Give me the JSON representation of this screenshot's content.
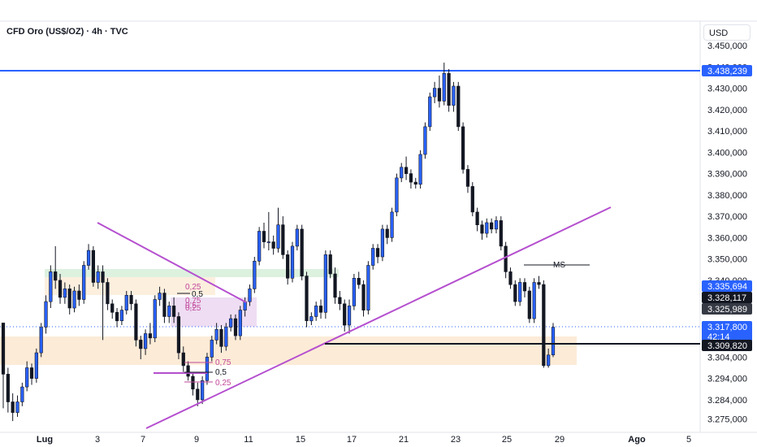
{
  "header": {
    "symbol_title": "CFD Oro (US$/OZ) · 4h · TVC",
    "currency": "USD"
  },
  "colors": {
    "up": "#2962ff",
    "down": "#131722",
    "trendline": "#b54fcf",
    "resistance": "#2962ff",
    "demand_zone": "#fbe8d0",
    "supply_zone": "#d9f0dc",
    "fvg_zone": "#ecd9f2",
    "fib_text": "#c2489b"
  },
  "chart_data": {
    "type": "candlestick",
    "price_axis": {
      "ticks": [
        "3.450,000",
        "3.440,000",
        "3.430,000",
        "3.420,000",
        "3.410,000",
        "3.400,000",
        "3.390,000",
        "3.380,000",
        "3.370,000",
        "3.360,000",
        "3.350,000",
        "3.340,000",
        "3.330,000",
        "3.304,000",
        "3.294,000",
        "3.284,000",
        "3.275,000"
      ],
      "tick_values": [
        3450,
        3440,
        3430,
        3420,
        3410,
        3400,
        3390,
        3380,
        3370,
        3360,
        3350,
        3340,
        3330,
        3304,
        3294,
        3284,
        3275
      ]
    },
    "time_axis": {
      "labels": [
        "Lug",
        "3",
        "7",
        "9",
        "11",
        "15",
        "17",
        "21",
        "23",
        "25",
        "29",
        "Ago",
        "5"
      ],
      "bold": [
        "Lug",
        "Ago"
      ]
    },
    "price_tags": [
      {
        "value": 3438.239,
        "label": "3.438,239",
        "style": "blue"
      },
      {
        "value": 3335.694,
        "label": "3.335,694",
        "style": "blue"
      },
      {
        "value": 3328.117,
        "label": "3.328,117",
        "style": "black"
      },
      {
        "value": 3325.989,
        "label": "3.325,989",
        "style": "grey"
      },
      {
        "value": 3317.8,
        "label": "3.317,800",
        "sublabel": "42:14",
        "style": "blue"
      },
      {
        "value": 3309.82,
        "label": "3.309,820",
        "style": "black"
      }
    ],
    "annotations": {
      "ms_label": "MS",
      "fib_upper": [
        "0,25",
        "0,5",
        "0,75",
        "0,5",
        "0,25"
      ],
      "fib_lower": [
        "0,75",
        "0,5",
        "0,25"
      ]
    },
    "candles": [
      [
        3320,
        3296,
        3300,
        3280
      ],
      [
        3296,
        3283,
        3299,
        3278
      ],
      [
        3283,
        3278,
        3287,
        3274
      ],
      [
        3278,
        3283,
        3286,
        3276
      ],
      [
        3283,
        3290,
        3292,
        3281
      ],
      [
        3290,
        3299,
        3302,
        3288
      ],
      [
        3299,
        3294,
        3301,
        3291
      ],
      [
        3294,
        3306,
        3308,
        3292
      ],
      [
        3306,
        3318,
        3320,
        3304
      ],
      [
        3318,
        3330,
        3333,
        3315
      ],
      [
        3330,
        3344,
        3347,
        3327
      ],
      [
        3344,
        3340,
        3356,
        3336
      ],
      [
        3340,
        3332,
        3343,
        3329
      ],
      [
        3332,
        3336,
        3339,
        3329
      ],
      [
        3336,
        3327,
        3338,
        3324
      ],
      [
        3327,
        3335,
        3337,
        3325
      ],
      [
        3335,
        3331,
        3338,
        3328
      ],
      [
        3331,
        3347,
        3349,
        3329
      ],
      [
        3347,
        3354,
        3357,
        3345
      ],
      [
        3354,
        3339,
        3356,
        3337
      ],
      [
        3339,
        3344,
        3347,
        3336
      ],
      [
        3344,
        3339,
        3347,
        3312
      ],
      [
        3339,
        3329,
        3341,
        3326
      ],
      [
        3329,
        3325,
        3331,
        3322
      ],
      [
        3325,
        3321,
        3327,
        3318
      ],
      [
        3321,
        3326,
        3328,
        3319
      ],
      [
        3326,
        3333,
        3335,
        3324
      ],
      [
        3333,
        3329,
        3335,
        3326
      ],
      [
        3329,
        3312,
        3331,
        3309
      ],
      [
        3312,
        3308,
        3314,
        3303
      ],
      [
        3308,
        3315,
        3317,
        3305
      ],
      [
        3315,
        3313,
        3320,
        3310
      ],
      [
        3313,
        3331,
        3333,
        3311
      ],
      [
        3331,
        3334,
        3337,
        3328
      ],
      [
        3334,
        3323,
        3336,
        3320
      ],
      [
        3323,
        3328,
        3330,
        3320
      ],
      [
        3328,
        3323,
        3332,
        3320
      ],
      [
        3323,
        3306,
        3325,
        3303
      ],
      [
        3306,
        3300,
        3309,
        3297
      ],
      [
        3300,
        3295,
        3302,
        3293
      ],
      [
        3295,
        3289,
        3297,
        3286
      ],
      [
        3289,
        3284,
        3292,
        3281
      ],
      [
        3284,
        3293,
        3295,
        3282
      ],
      [
        3293,
        3304,
        3306,
        3291
      ],
      [
        3304,
        3312,
        3314,
        3302
      ],
      [
        3312,
        3317,
        3320,
        3310
      ],
      [
        3317,
        3309,
        3319,
        3306
      ],
      [
        3309,
        3318,
        3320,
        3307
      ],
      [
        3318,
        3322,
        3324,
        3316
      ],
      [
        3322,
        3314,
        3324,
        3312
      ],
      [
        3314,
        3326,
        3328,
        3312
      ],
      [
        3326,
        3330,
        3332,
        3323
      ],
      [
        3330,
        3336,
        3338,
        3328
      ],
      [
        3336,
        3349,
        3351,
        3334
      ],
      [
        3349,
        3363,
        3365,
        3347
      ],
      [
        3363,
        3358,
        3367,
        3355
      ],
      [
        3358,
        3358,
        3372,
        3354
      ],
      [
        3358,
        3355,
        3361,
        3352
      ],
      [
        3355,
        3366,
        3374,
        3353
      ],
      [
        3366,
        3352,
        3370,
        3350
      ],
      [
        3352,
        3341,
        3354,
        3338
      ],
      [
        3341,
        3356,
        3358,
        3339
      ],
      [
        3356,
        3364,
        3366,
        3354
      ],
      [
        3364,
        3342,
        3366,
        3340
      ],
      [
        3342,
        3321,
        3344,
        3318
      ],
      [
        3321,
        3323,
        3325,
        3319
      ],
      [
        3323,
        3328,
        3330,
        3321
      ],
      [
        3328,
        3325,
        3331,
        3322
      ],
      [
        3325,
        3352,
        3354,
        3322
      ],
      [
        3352,
        3343,
        3354,
        3341
      ],
      [
        3343,
        3332,
        3346,
        3329
      ],
      [
        3332,
        3329,
        3335,
        3326
      ],
      [
        3329,
        3319,
        3331,
        3316
      ],
      [
        3319,
        3328,
        3331,
        3315
      ],
      [
        3328,
        3341,
        3343,
        3326
      ],
      [
        3341,
        3338,
        3344,
        3336
      ],
      [
        3338,
        3326,
        3340,
        3323
      ],
      [
        3326,
        3347,
        3349,
        3324
      ],
      [
        3347,
        3355,
        3357,
        3345
      ],
      [
        3355,
        3351,
        3357,
        3348
      ],
      [
        3351,
        3364,
        3366,
        3349
      ],
      [
        3364,
        3360,
        3366,
        3357
      ],
      [
        3360,
        3372,
        3374,
        3358
      ],
      [
        3372,
        3388,
        3390,
        3370
      ],
      [
        3388,
        3393,
        3395,
        3386
      ],
      [
        3393,
        3390,
        3398,
        3387
      ],
      [
        3390,
        3386,
        3392,
        3383
      ],
      [
        3386,
        3385,
        3388,
        3383
      ],
      [
        3385,
        3399,
        3401,
        3383
      ],
      [
        3399,
        3412,
        3414,
        3397
      ],
      [
        3412,
        3426,
        3428,
        3410
      ],
      [
        3426,
        3430,
        3433,
        3423
      ],
      [
        3430,
        3424,
        3436,
        3421
      ],
      [
        3424,
        3437,
        3442,
        3422
      ],
      [
        3437,
        3422,
        3439,
        3419
      ],
      [
        3422,
        3431,
        3433,
        3419
      ],
      [
        3431,
        3412,
        3433,
        3410
      ],
      [
        3412,
        3392,
        3414,
        3390
      ],
      [
        3392,
        3384,
        3394,
        3381
      ],
      [
        3384,
        3372,
        3386,
        3370
      ],
      [
        3372,
        3366,
        3374,
        3363
      ],
      [
        3366,
        3362,
        3368,
        3359
      ],
      [
        3362,
        3367,
        3369,
        3360
      ],
      [
        3367,
        3364,
        3369,
        3362
      ],
      [
        3364,
        3368,
        3370,
        3362
      ],
      [
        3368,
        3356,
        3370,
        3354
      ],
      [
        3356,
        3344,
        3358,
        3341
      ],
      [
        3344,
        3338,
        3346,
        3336
      ],
      [
        3338,
        3330,
        3340,
        3328
      ],
      [
        3330,
        3339,
        3341,
        3328
      ],
      [
        3339,
        3335,
        3341,
        3332
      ],
      [
        3335,
        3322,
        3337,
        3320
      ],
      [
        3322,
        3339,
        3341,
        3320
      ],
      [
        3339,
        3338,
        3342,
        3336
      ],
      [
        3338,
        3300,
        3340,
        3299
      ],
      [
        3300,
        3305,
        3308,
        3299
      ],
      [
        3305,
        3318,
        3320,
        3304
      ]
    ]
  }
}
